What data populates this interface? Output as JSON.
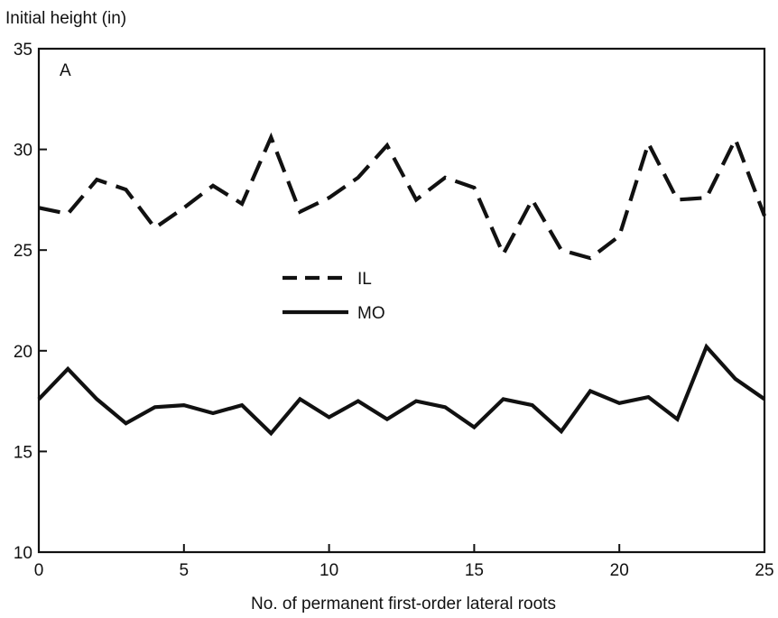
{
  "chart_data": {
    "type": "line",
    "ylabel": "Initial height (in)",
    "xlabel": "No. of permanent first-order lateral roots",
    "panel_label": "A",
    "xlim": [
      0,
      25
    ],
    "ylim": [
      10,
      35
    ],
    "xticks": [
      0,
      5,
      10,
      15,
      20,
      25
    ],
    "yticks": [
      10,
      15,
      20,
      25,
      30,
      35
    ],
    "legend_position": "center-left",
    "series": [
      {
        "name": "IL",
        "style": "dashed",
        "color": "#111111",
        "x": [
          0,
          1,
          2,
          3,
          4,
          5,
          6,
          7,
          8,
          9,
          10,
          11,
          12,
          13,
          14,
          15,
          16,
          17,
          18,
          19,
          20,
          21,
          22,
          23,
          24,
          25
        ],
        "values": [
          27.1,
          26.8,
          28.5,
          28.0,
          26.1,
          27.1,
          28.2,
          27.3,
          30.6,
          26.9,
          27.6,
          28.6,
          30.2,
          27.5,
          28.6,
          28.1,
          24.8,
          27.5,
          25.0,
          24.6,
          25.7,
          30.3,
          27.5,
          27.6,
          30.5,
          26.7
        ]
      },
      {
        "name": "MO",
        "style": "solid",
        "color": "#111111",
        "x": [
          0,
          1,
          2,
          3,
          4,
          5,
          6,
          7,
          8,
          9,
          10,
          11,
          12,
          13,
          14,
          15,
          16,
          17,
          18,
          19,
          20,
          21,
          22,
          23,
          24,
          25
        ],
        "values": [
          17.6,
          19.1,
          17.6,
          16.4,
          17.2,
          17.3,
          16.9,
          17.3,
          15.9,
          17.6,
          16.7,
          17.5,
          16.6,
          17.5,
          17.2,
          16.2,
          17.6,
          17.3,
          16.0,
          18.0,
          17.4,
          17.7,
          16.6,
          20.2,
          18.6,
          17.6
        ]
      }
    ]
  }
}
